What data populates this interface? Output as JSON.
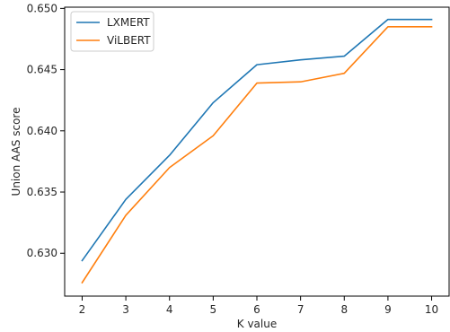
{
  "chart_data": {
    "type": "line",
    "title": "",
    "xlabel": "K value",
    "ylabel": "Union AAS score",
    "x": [
      2,
      3,
      4,
      5,
      6,
      7,
      8,
      9,
      10
    ],
    "xlim": [
      1.6,
      10.4
    ],
    "ylim": [
      0.6265,
      0.6501
    ],
    "x_ticks": [
      2,
      3,
      4,
      5,
      6,
      7,
      8,
      9,
      10
    ],
    "y_ticks": [
      0.63,
      0.635,
      0.64,
      0.645,
      0.65
    ],
    "y_tick_labels": [
      "0.630",
      "0.635",
      "0.640",
      "0.645",
      "0.650"
    ],
    "grid": false,
    "legend_position": "top-left",
    "series": [
      {
        "name": "LXMERT",
        "color": "#1f77b4",
        "values": [
          0.6294,
          0.6344,
          0.638,
          0.6423,
          0.6454,
          0.6458,
          0.6461,
          0.6491,
          0.6491
        ]
      },
      {
        "name": "ViLBERT",
        "color": "#ff7f0e",
        "values": [
          0.6276,
          0.6331,
          0.637,
          0.6396,
          0.6439,
          0.644,
          0.6447,
          0.6485,
          0.6485
        ]
      }
    ]
  }
}
